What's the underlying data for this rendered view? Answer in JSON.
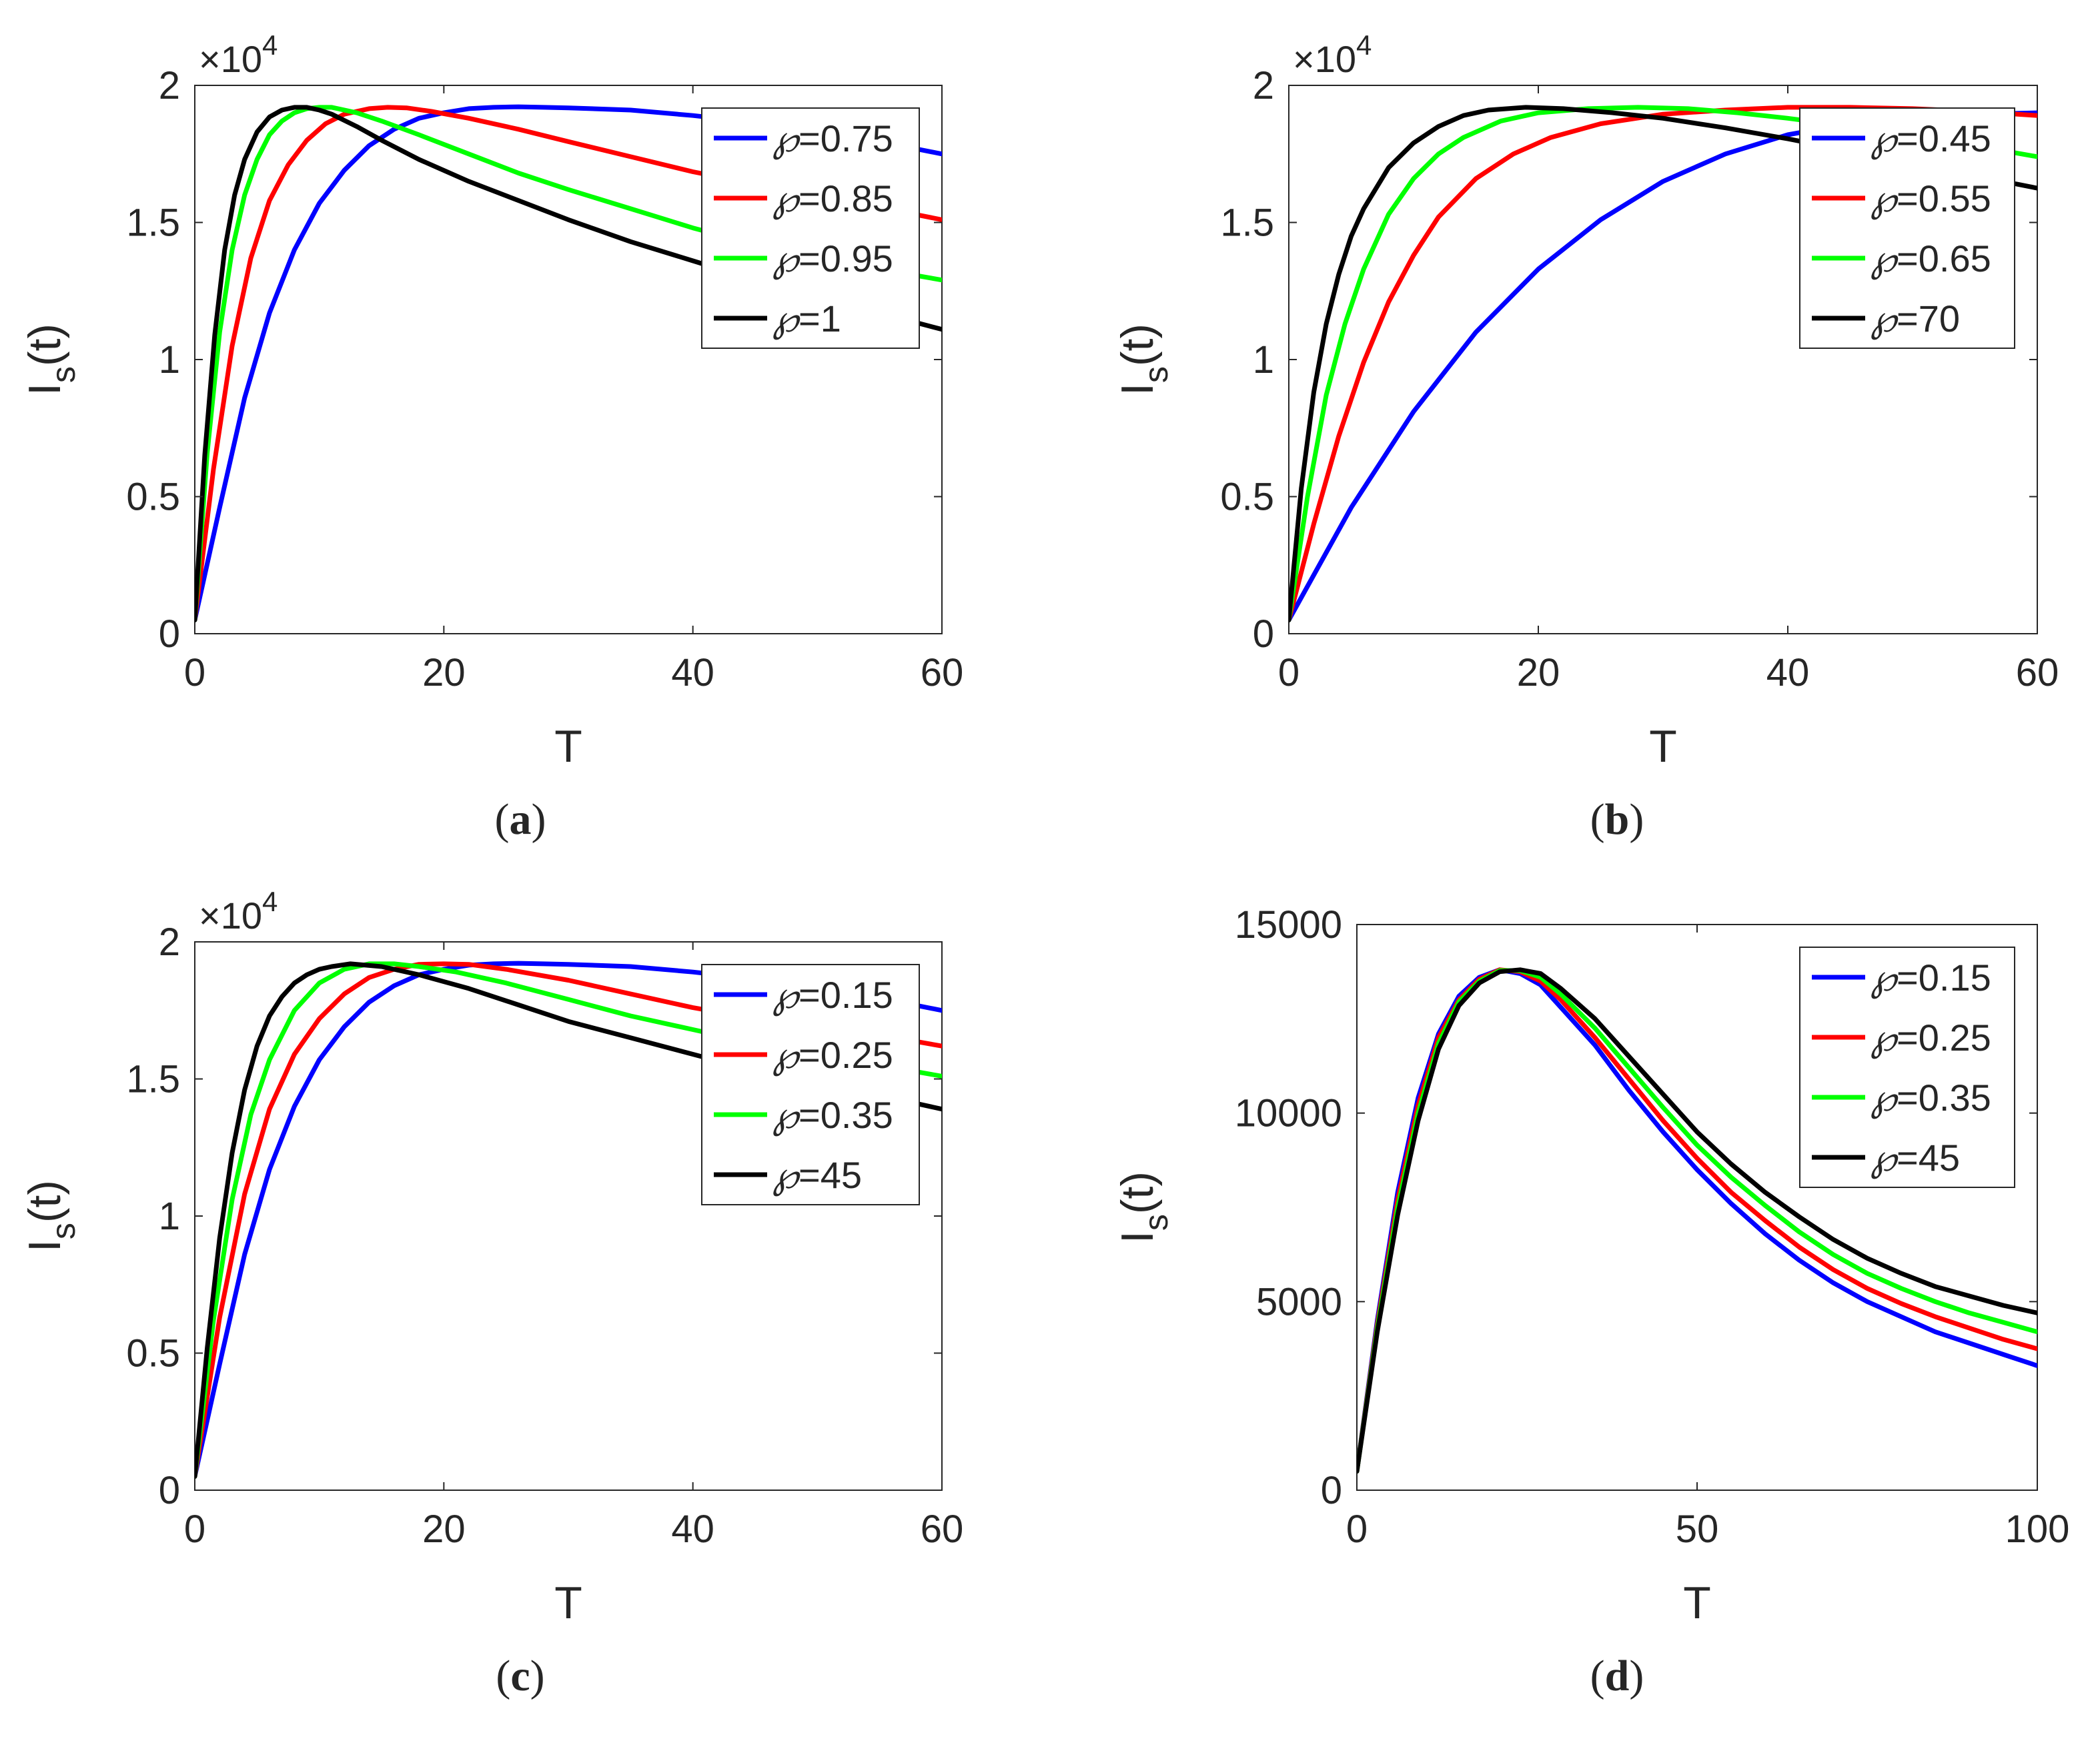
{
  "chart_data": [
    {
      "id": "a",
      "caption": "(a)",
      "type": "line",
      "xlabel": "T",
      "ylabel_main": "I",
      "ylabel_sub": "s",
      "ylabel_tail": "(t)",
      "xlim": [
        0,
        60
      ],
      "ylim": [
        0,
        20000
      ],
      "xticks": [
        0,
        20,
        40,
        60
      ],
      "xtick_labels": [
        "0",
        "20",
        "40",
        "60"
      ],
      "yticks": [
        0,
        5000,
        10000,
        15000,
        20000
      ],
      "ytick_labels": [
        "0",
        "0.5",
        "1",
        "1.5",
        "2"
      ],
      "exponent_base": "×10",
      "exponent_power": "4",
      "legend_symbol": "℘",
      "legend_position": "top-right",
      "series": [
        {
          "name": "℘=0.75",
          "label": "=0.75",
          "color": "#0000ff",
          "x": [
            0,
            2,
            4,
            6,
            8,
            10,
            12,
            14,
            16,
            18,
            20,
            22,
            24,
            26,
            28,
            30,
            35,
            40,
            45,
            50,
            55,
            60
          ],
          "y": [
            500,
            4600,
            8600,
            11700,
            14000,
            15700,
            16900,
            17800,
            18400,
            18800,
            19000,
            19150,
            19200,
            19220,
            19200,
            19180,
            19100,
            18900,
            18650,
            18350,
            17950,
            17500
          ]
        },
        {
          "name": "℘=0.85",
          "label": "=0.85",
          "color": "#ff0000",
          "x": [
            0,
            1.5,
            3,
            4.5,
            6,
            7.5,
            9,
            10.5,
            12,
            14,
            15.5,
            17,
            19,
            22,
            26,
            30,
            35,
            40,
            45,
            50,
            55,
            60
          ],
          "y": [
            500,
            6000,
            10500,
            13700,
            15800,
            17100,
            18000,
            18600,
            18950,
            19150,
            19200,
            19180,
            19050,
            18800,
            18400,
            17950,
            17400,
            16850,
            16400,
            15950,
            15550,
            15100
          ]
        },
        {
          "name": "℘=0.95",
          "label": "=0.95",
          "color": "#00ff00",
          "x": [
            0,
            1,
            2,
            3,
            4,
            5,
            6,
            7,
            8,
            9,
            10,
            11,
            13,
            15,
            18,
            22,
            26,
            30,
            35,
            40,
            45,
            50,
            55,
            60
          ],
          "y": [
            500,
            6600,
            11000,
            14000,
            16000,
            17300,
            18200,
            18700,
            19000,
            19150,
            19200,
            19200,
            19000,
            18700,
            18200,
            17500,
            16800,
            16200,
            15500,
            14800,
            14200,
            13700,
            13300,
            12900
          ]
        },
        {
          "name": "℘=1",
          "label": "=1",
          "color": "#000000",
          "x": [
            0,
            0.8,
            1.6,
            2.4,
            3.2,
            4,
            5,
            6,
            7,
            8,
            9,
            10,
            11,
            13,
            15,
            18,
            22,
            26,
            30,
            35,
            40,
            45,
            50,
            55,
            60
          ],
          "y": [
            500,
            6500,
            10900,
            14000,
            16000,
            17300,
            18300,
            18850,
            19100,
            19200,
            19200,
            19100,
            18950,
            18500,
            18000,
            17300,
            16500,
            15800,
            15100,
            14300,
            13600,
            12900,
            12300,
            11700,
            11100
          ]
        }
      ]
    },
    {
      "id": "b",
      "caption": "(b)",
      "type": "line",
      "xlabel": "T",
      "ylabel_main": "I",
      "ylabel_sub": "s",
      "ylabel_tail": "(t)",
      "xlim": [
        0,
        60
      ],
      "ylim": [
        0,
        20000
      ],
      "xticks": [
        0,
        20,
        40,
        60
      ],
      "xtick_labels": [
        "0",
        "20",
        "40",
        "60"
      ],
      "yticks": [
        0,
        5000,
        10000,
        15000,
        20000
      ],
      "ytick_labels": [
        "0",
        "0.5",
        "1",
        "1.5",
        "2"
      ],
      "exponent_base": "×10",
      "exponent_power": "4",
      "legend_symbol": "℘",
      "legend_position": "top-right",
      "series": [
        {
          "name": "℘=0.45",
          "label": "=0.45",
          "color": "#0000ff",
          "x": [
            0,
            5,
            10,
            15,
            20,
            25,
            30,
            35,
            40,
            45,
            50,
            55,
            60
          ],
          "y": [
            500,
            4600,
            8100,
            11000,
            13300,
            15100,
            16500,
            17500,
            18200,
            18600,
            18850,
            18950,
            19000
          ]
        },
        {
          "name": "℘=0.55",
          "label": "=0.55",
          "color": "#ff0000",
          "x": [
            0,
            2,
            4,
            6,
            8,
            10,
            12,
            15,
            18,
            21,
            25,
            30,
            35,
            40,
            45,
            50,
            55,
            60
          ],
          "y": [
            500,
            4000,
            7200,
            9900,
            12100,
            13800,
            15200,
            16600,
            17500,
            18100,
            18600,
            18950,
            19100,
            19200,
            19200,
            19150,
            19050,
            18900
          ]
        },
        {
          "name": "℘=0.65",
          "label": "=0.65",
          "color": "#00ff00",
          "x": [
            0,
            1.5,
            3,
            4.5,
            6,
            8,
            10,
            12,
            14,
            17,
            20,
            24,
            28,
            32,
            36,
            40,
            45,
            50,
            55,
            60
          ],
          "y": [
            500,
            5000,
            8700,
            11300,
            13300,
            15300,
            16600,
            17500,
            18100,
            18700,
            19000,
            19150,
            19200,
            19150,
            19000,
            18800,
            18500,
            18150,
            17800,
            17400
          ]
        },
        {
          "name": "℘=70",
          "label": "=70",
          "color": "#000000",
          "x": [
            0,
            1,
            2,
            3,
            4,
            5,
            6,
            8,
            10,
            12,
            14,
            16,
            19,
            22,
            26,
            30,
            35,
            40,
            45,
            50,
            55,
            60
          ],
          "y": [
            500,
            5300,
            8800,
            11300,
            13100,
            14500,
            15500,
            17000,
            17900,
            18500,
            18900,
            19100,
            19200,
            19150,
            19000,
            18800,
            18450,
            18050,
            17600,
            17150,
            16700,
            16250
          ]
        }
      ]
    },
    {
      "id": "c",
      "caption": "(c)",
      "type": "line",
      "xlabel": "T",
      "ylabel_main": "I",
      "ylabel_sub": "s",
      "ylabel_tail": "(t)",
      "xlim": [
        0,
        60
      ],
      "ylim": [
        0,
        20000
      ],
      "xticks": [
        0,
        20,
        40,
        60
      ],
      "xtick_labels": [
        "0",
        "20",
        "40",
        "60"
      ],
      "yticks": [
        0,
        5000,
        10000,
        15000,
        20000
      ],
      "ytick_labels": [
        "0",
        "0.5",
        "1",
        "1.5",
        "2"
      ],
      "exponent_base": "×10",
      "exponent_power": "4",
      "legend_symbol": "℘",
      "legend_position": "top-right",
      "series": [
        {
          "name": "℘=0.15",
          "label": "=0.15",
          "color": "#0000ff",
          "x": [
            0,
            2,
            4,
            6,
            8,
            10,
            12,
            14,
            16,
            18,
            20,
            22,
            24,
            26,
            28,
            30,
            35,
            40,
            45,
            50,
            55,
            60
          ],
          "y": [
            500,
            4600,
            8600,
            11700,
            14000,
            15700,
            16900,
            17800,
            18400,
            18800,
            19000,
            19150,
            19200,
            19220,
            19200,
            19180,
            19100,
            18900,
            18650,
            18350,
            17950,
            17500
          ]
        },
        {
          "name": "℘=0.25",
          "label": "=0.25",
          "color": "#ff0000",
          "x": [
            0,
            2,
            4,
            6,
            8,
            10,
            12,
            14,
            16,
            18,
            20,
            22,
            25,
            30,
            35,
            40,
            45,
            50,
            55,
            60
          ],
          "y": [
            500,
            6300,
            10800,
            13900,
            15900,
            17200,
            18100,
            18700,
            19000,
            19180,
            19200,
            19180,
            19000,
            18600,
            18100,
            17600,
            17200,
            16900,
            16600,
            16200
          ]
        },
        {
          "name": "℘=0.35",
          "label": "=0.35",
          "color": "#00ff00",
          "x": [
            0,
            1.5,
            3,
            4.5,
            6,
            8,
            10,
            12,
            14,
            16,
            18,
            21,
            25,
            30,
            35,
            40,
            45,
            50,
            55,
            60
          ],
          "y": [
            500,
            6200,
            10600,
            13700,
            15700,
            17500,
            18500,
            19000,
            19200,
            19200,
            19100,
            18900,
            18500,
            17900,
            17300,
            16800,
            16300,
            15900,
            15500,
            15100
          ]
        },
        {
          "name": "℘=45",
          "label": "=45",
          "color": "#000000",
          "x": [
            0,
            1,
            2,
            3,
            4,
            5,
            6,
            7,
            8,
            9,
            10,
            11,
            12.5,
            15,
            18,
            22,
            26,
            30,
            35,
            40,
            45,
            50,
            55,
            60
          ],
          "y": [
            500,
            5200,
            9200,
            12300,
            14600,
            16200,
            17300,
            18000,
            18500,
            18800,
            19000,
            19100,
            19200,
            19100,
            18800,
            18300,
            17700,
            17100,
            16500,
            15900,
            15300,
            14800,
            14400,
            13900
          ]
        }
      ]
    },
    {
      "id": "d",
      "caption": "(d)",
      "type": "line",
      "xlabel": "T",
      "ylabel_main": "I",
      "ylabel_sub": "s",
      "ylabel_tail": "(t)",
      "xlim": [
        0,
        100
      ],
      "ylim": [
        0,
        15000
      ],
      "xticks": [
        0,
        50,
        100
      ],
      "xtick_labels": [
        "0",
        "50",
        "100"
      ],
      "yticks": [
        0,
        5000,
        10000,
        15000
      ],
      "ytick_labels": [
        "0",
        "5000",
        "10000",
        "15000"
      ],
      "legend_symbol": "℘",
      "legend_position": "top-right",
      "series": [
        {
          "name": "℘=0.15",
          "label": "=0.15",
          "color": "#0000ff",
          "x": [
            0,
            3,
            6,
            9,
            12,
            15,
            18,
            21,
            24,
            27,
            30,
            35,
            40,
            45,
            50,
            55,
            60,
            65,
            70,
            75,
            80,
            85,
            90,
            95,
            100
          ],
          "y": [
            500,
            4500,
            7900,
            10400,
            12100,
            13100,
            13600,
            13800,
            13700,
            13400,
            12800,
            11800,
            10600,
            9500,
            8500,
            7600,
            6800,
            6100,
            5500,
            5000,
            4600,
            4200,
            3900,
            3600,
            3300
          ]
        },
        {
          "name": "℘=0.25",
          "label": "=0.25",
          "color": "#ff0000",
          "x": [
            0,
            3,
            6,
            9,
            12,
            15,
            18,
            21,
            24,
            27,
            30,
            35,
            40,
            45,
            50,
            55,
            60,
            65,
            70,
            75,
            80,
            85,
            90,
            95,
            100
          ],
          "y": [
            500,
            4400,
            7700,
            10200,
            12000,
            13000,
            13550,
            13800,
            13750,
            13500,
            13000,
            12000,
            10900,
            9800,
            8800,
            7900,
            7150,
            6450,
            5850,
            5350,
            4950,
            4600,
            4300,
            4000,
            3750
          ]
        },
        {
          "name": "℘=0.35",
          "label": "=0.35",
          "color": "#00ff00",
          "x": [
            0,
            3,
            6,
            9,
            12,
            15,
            18,
            21,
            24,
            27,
            30,
            35,
            40,
            45,
            50,
            55,
            60,
            65,
            70,
            75,
            80,
            85,
            90,
            95,
            100
          ],
          "y": [
            500,
            4300,
            7500,
            10000,
            11850,
            12950,
            13500,
            13780,
            13780,
            13600,
            13150,
            12250,
            11200,
            10150,
            9150,
            8300,
            7550,
            6850,
            6250,
            5750,
            5350,
            5000,
            4700,
            4450,
            4200
          ]
        },
        {
          "name": "℘=45",
          "label": "=45",
          "color": "#000000",
          "x": [
            0,
            3,
            6,
            9,
            12,
            15,
            18,
            21,
            24,
            27,
            30,
            35,
            40,
            45,
            50,
            55,
            60,
            65,
            70,
            75,
            80,
            85,
            90,
            95,
            100
          ],
          "y": [
            500,
            4200,
            7300,
            9800,
            11700,
            12850,
            13450,
            13750,
            13800,
            13700,
            13300,
            12500,
            11500,
            10500,
            9500,
            8650,
            7900,
            7250,
            6650,
            6150,
            5750,
            5400,
            5150,
            4900,
            4700
          ]
        }
      ]
    }
  ]
}
